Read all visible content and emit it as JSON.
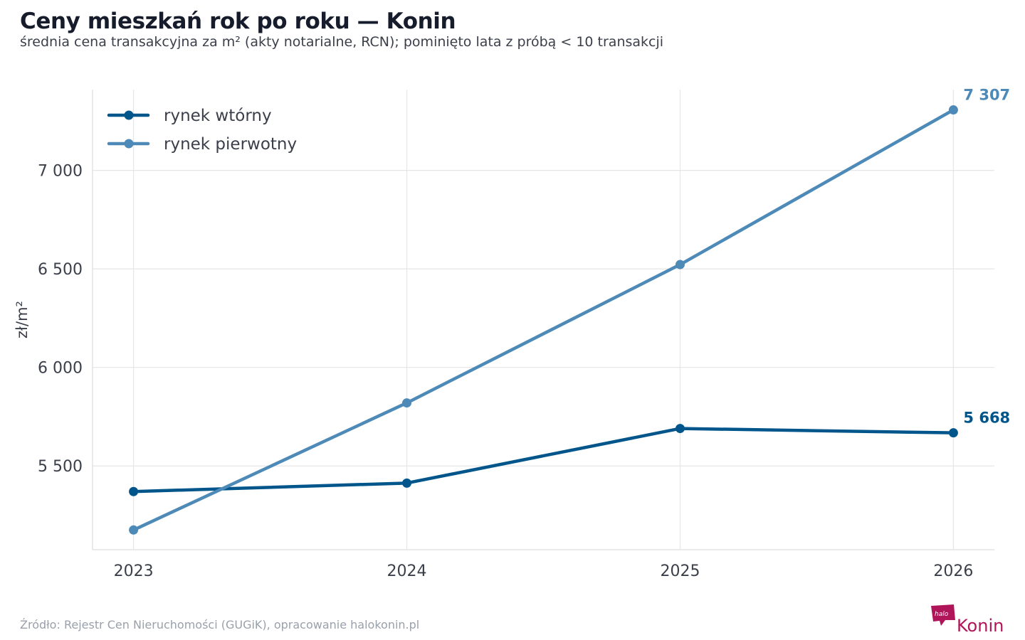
{
  "header": {
    "title": "Ceny mieszkań rok po roku — Konin",
    "subtitle": "średnia cena transakcyjna za m² (akty notarialne, RCN); pominięto lata z próbą < 10 transakcji"
  },
  "footer": {
    "source": "Źródło: Rejestr Cen Nieruchomości (GUGiK), opracowanie halokonin.pl",
    "logo_text_left": "halo",
    "logo_text_right": "Konin",
    "logo_color": "#b0155a"
  },
  "chart_data": {
    "type": "line",
    "title": "Ceny mieszkań rok po roku — Konin",
    "subtitle": "średnia cena transakcyjna za m² (akty notarialne, RCN); pominięto lata z próbą < 10 transakcji",
    "xlabel": "",
    "ylabel": "zł/m²",
    "x": [
      2023,
      2024,
      2025,
      2026
    ],
    "x_tick_labels": [
      "2023",
      "2024",
      "2025",
      "2026"
    ],
    "y_ticks": [
      5500,
      6000,
      6500,
      7000
    ],
    "y_tick_labels": [
      "5 500",
      "6 000",
      "6 500",
      "7 000"
    ],
    "xlim": [
      2022.85,
      2026.15
    ],
    "ylim": [
      5075,
      7410
    ],
    "grid": true,
    "legend_position": "top-left",
    "series": [
      {
        "name": "rynek wtórny",
        "color": "#00558a",
        "values": [
          5370,
          5413,
          5690,
          5668
        ],
        "end_label": "5 668"
      },
      {
        "name": "rynek pierwotny",
        "color": "#4d8ab8",
        "values": [
          5175,
          5820,
          6522,
          7307
        ],
        "end_label": "7 307"
      }
    ]
  }
}
